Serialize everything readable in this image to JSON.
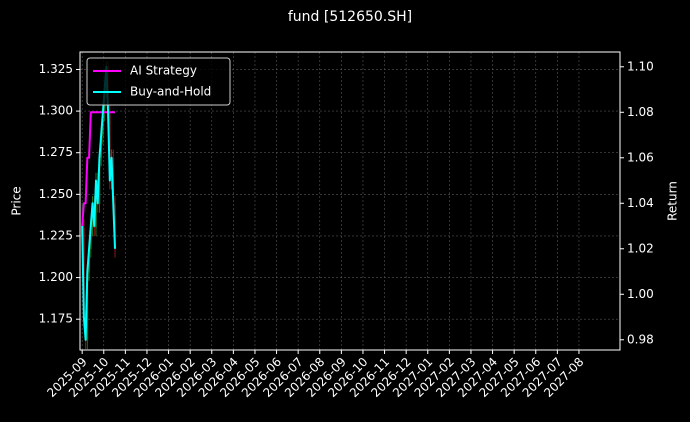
{
  "chart_data": {
    "type": "candlestick",
    "title": "fund [512650.SH]",
    "ylabel": "Price",
    "y2label": "Return",
    "x": [
      0.0,
      0.08,
      0.16,
      0.24,
      0.32,
      0.4,
      0.48,
      0.56,
      0.64,
      0.72,
      0.8,
      0.88,
      0.96,
      1.04,
      1.12,
      1.2,
      1.28,
      1.36,
      1.44,
      1.52
    ],
    "open": [
      1.225,
      1.23,
      1.175,
      1.162,
      1.203,
      1.217,
      1.23,
      1.244,
      1.23,
      1.258,
      1.244,
      1.272,
      1.285,
      1.299,
      1.313,
      1.327,
      1.299,
      1.258,
      1.272,
      1.244
    ],
    "high": [
      1.245,
      1.235,
      1.18,
      1.208,
      1.222,
      1.235,
      1.249,
      1.249,
      1.263,
      1.263,
      1.277,
      1.29,
      1.304,
      1.318,
      1.33,
      1.33,
      1.304,
      1.277,
      1.277,
      1.249
    ],
    "low": [
      1.22,
      1.17,
      1.157,
      1.157,
      1.198,
      1.212,
      1.225,
      1.225,
      1.225,
      1.239,
      1.239,
      1.267,
      1.28,
      1.294,
      1.308,
      1.294,
      1.253,
      1.253,
      1.239,
      1.212
    ],
    "close": [
      1.23,
      1.175,
      1.162,
      1.203,
      1.217,
      1.23,
      1.244,
      1.23,
      1.258,
      1.244,
      1.272,
      1.285,
      1.299,
      1.313,
      1.327,
      1.299,
      1.258,
      1.272,
      1.244,
      1.217
    ],
    "up_color": "#1f6f1f",
    "down_color": "#8b1a1a",
    "series": [
      {
        "name": "AI Strategy",
        "color": "#ff00ff",
        "axis": "y2",
        "values": [
          1.03,
          1.04,
          1.04,
          1.06,
          1.06,
          1.08,
          1.08,
          1.08,
          1.08,
          1.08,
          1.08,
          1.08,
          1.08,
          1.08,
          1.08,
          1.08,
          1.08,
          1.08,
          1.08,
          1.08
        ]
      },
      {
        "name": "Buy-and-Hold",
        "color": "#00ffff",
        "axis": "y2",
        "values": [
          1.03,
          0.99,
          0.98,
          1.01,
          1.02,
          1.03,
          1.04,
          1.03,
          1.05,
          1.04,
          1.06,
          1.07,
          1.08,
          1.09,
          1.1,
          1.08,
          1.05,
          1.06,
          1.04,
          1.02
        ]
      }
    ],
    "xlim": [
      -0.1,
      24.9
    ],
    "xticks": [
      {
        "value": 0,
        "label": "2025-09"
      },
      {
        "value": 1,
        "label": "2025-10"
      },
      {
        "value": 2,
        "label": "2025-11"
      },
      {
        "value": 3,
        "label": "2025-12"
      },
      {
        "value": 4,
        "label": "2026-01"
      },
      {
        "value": 5,
        "label": "2026-02"
      },
      {
        "value": 6,
        "label": "2026-03"
      },
      {
        "value": 7,
        "label": "2026-04"
      },
      {
        "value": 8,
        "label": "2026-05"
      },
      {
        "value": 9,
        "label": "2026-06"
      },
      {
        "value": 10,
        "label": "2026-07"
      },
      {
        "value": 11,
        "label": "2026-08"
      },
      {
        "value": 12,
        "label": "2026-09"
      },
      {
        "value": 13,
        "label": "2026-10"
      },
      {
        "value": 14,
        "label": "2026-11"
      },
      {
        "value": 15,
        "label": "2026-12"
      },
      {
        "value": 16,
        "label": "2027-01"
      },
      {
        "value": 17,
        "label": "2027-02"
      },
      {
        "value": 18,
        "label": "2027-03"
      },
      {
        "value": 19,
        "label": "2027-04"
      },
      {
        "value": 20,
        "label": "2027-05"
      },
      {
        "value": 21,
        "label": "2027-06"
      },
      {
        "value": 22,
        "label": "2027-07"
      },
      {
        "value": 23,
        "label": "2027-08"
      }
    ],
    "ylim": [
      1.1565,
      1.3355
    ],
    "yticks": [
      {
        "value": 1.175,
        "label": "1.175"
      },
      {
        "value": 1.2,
        "label": "1.200"
      },
      {
        "value": 1.225,
        "label": "1.225"
      },
      {
        "value": 1.25,
        "label": "1.250"
      },
      {
        "value": 1.275,
        "label": "1.275"
      },
      {
        "value": 1.3,
        "label": "1.300"
      },
      {
        "value": 1.325,
        "label": "1.325"
      }
    ],
    "y2lim": [
      0.9755,
      1.1065
    ],
    "y2ticks": [
      {
        "value": 0.98,
        "label": "0.98"
      },
      {
        "value": 1.0,
        "label": "1.00"
      },
      {
        "value": 1.02,
        "label": "1.02"
      },
      {
        "value": 1.04,
        "label": "1.04"
      },
      {
        "value": 1.06,
        "label": "1.06"
      },
      {
        "value": 1.08,
        "label": "1.08"
      },
      {
        "value": 1.1,
        "label": "1.10"
      }
    ],
    "grid": true,
    "legend": "upper left"
  }
}
